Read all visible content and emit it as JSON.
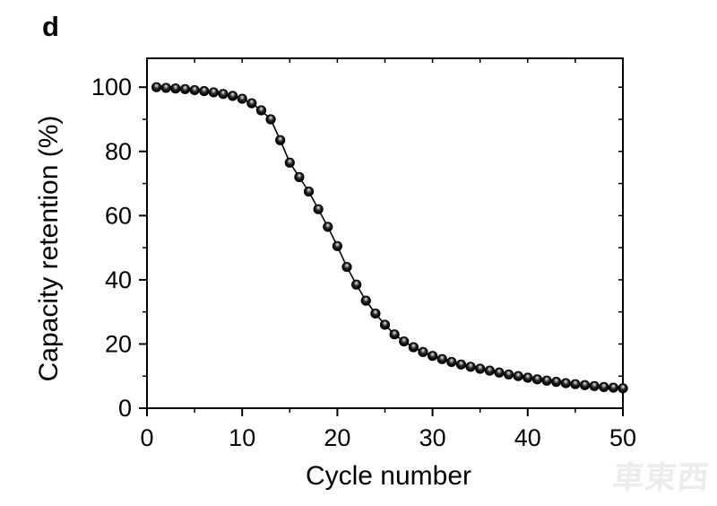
{
  "figure": {
    "panel_label": "d",
    "background_color": "#ffffff",
    "axis_color": "#000000",
    "watermark": {
      "text": "車東西",
      "color": "#ececea"
    }
  },
  "chart_data": {
    "type": "scatter",
    "subtype": "scatter-with-line",
    "title": "",
    "xlabel": "Cycle number",
    "ylabel": "Capacity retention (%)",
    "xlim": [
      0,
      50
    ],
    "ylim": [
      0,
      109
    ],
    "x_major_ticks": [
      0,
      10,
      20,
      30,
      40,
      50
    ],
    "x_minor_ticks": [
      5,
      15,
      25,
      35,
      45
    ],
    "y_major_ticks": [
      0,
      20,
      40,
      60,
      80,
      100
    ],
    "y_minor_ticks": [
      10,
      30,
      50,
      70,
      90
    ],
    "top_mirror_ticks": [
      5,
      10,
      15,
      20,
      25,
      30,
      35,
      40,
      45
    ],
    "right_mirror_ticks": [
      10,
      20,
      30,
      40,
      50,
      60,
      70,
      80,
      90,
      100
    ],
    "grid": false,
    "legend": null,
    "line_color": "#000000",
    "marker": {
      "shape": "sphere",
      "fill": "#000000",
      "highlight": "#f5f5f5",
      "radius_px": 5.6
    },
    "x": [
      1,
      2,
      3,
      4,
      5,
      6,
      7,
      8,
      9,
      10,
      11,
      12,
      13,
      14,
      15,
      16,
      17,
      18,
      19,
      20,
      21,
      22,
      23,
      24,
      25,
      26,
      27,
      28,
      29,
      30,
      31,
      32,
      33,
      34,
      35,
      36,
      37,
      38,
      39,
      40,
      41,
      42,
      43,
      44,
      45,
      46,
      47,
      48,
      49,
      50
    ],
    "y": [
      100,
      99.8,
      99.6,
      99.4,
      99.1,
      98.8,
      98.4,
      97.9,
      97.3,
      96.4,
      95.0,
      92.8,
      90.0,
      83.5,
      76.5,
      72.0,
      67.5,
      62.0,
      56.5,
      50.5,
      44.0,
      38.5,
      33.5,
      29.5,
      26.0,
      23.0,
      20.8,
      19.0,
      17.5,
      16.3,
      15.3,
      14.4,
      13.6,
      12.9,
      12.3,
      11.7,
      11.1,
      10.5,
      10.0,
      9.5,
      9.0,
      8.6,
      8.2,
      7.8,
      7.5,
      7.2,
      6.9,
      6.6,
      6.4,
      6.2
    ]
  }
}
